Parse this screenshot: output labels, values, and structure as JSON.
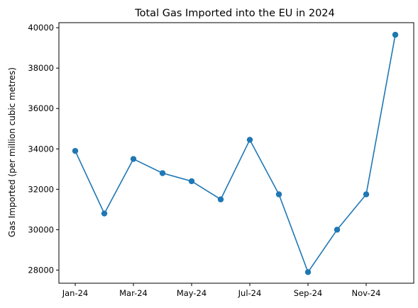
{
  "chart_data": {
    "type": "line",
    "title": "Total Gas Imported into the EU in 2024",
    "xlabel": "",
    "ylabel": "Gas Imported (per million cubic metres)",
    "categories": [
      "Jan-24",
      "Feb-24",
      "Mar-24",
      "Apr-24",
      "May-24",
      "Jun-24",
      "Jul-24",
      "Aug-24",
      "Sep-24",
      "Oct-24",
      "Nov-24",
      "Dec-24"
    ],
    "x_tick_labels": [
      "Jan-24",
      "Mar-24",
      "May-24",
      "Jul-24",
      "Sep-24",
      "Nov-24"
    ],
    "y_ticks": [
      28000,
      30000,
      32000,
      34000,
      36000,
      38000,
      40000
    ],
    "ylim": [
      27350,
      40250
    ],
    "grid": false,
    "series": [
      {
        "values": [
          33900,
          30800,
          33500,
          32800,
          32400,
          31500,
          34450,
          31750,
          27900,
          30000,
          31750,
          39650
        ],
        "color": "#1f77b4",
        "marker": "circle"
      }
    ]
  }
}
